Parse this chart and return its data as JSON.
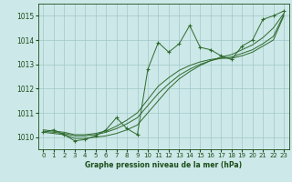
{
  "x": [
    0,
    1,
    2,
    3,
    4,
    5,
    6,
    7,
    8,
    9,
    10,
    11,
    12,
    13,
    14,
    15,
    16,
    17,
    18,
    19,
    20,
    21,
    22,
    23
  ],
  "y_main": [
    1010.2,
    1010.3,
    1010.1,
    1009.85,
    1009.9,
    1010.05,
    1010.3,
    1010.8,
    1010.35,
    1010.1,
    1012.8,
    1013.9,
    1013.5,
    1013.85,
    1014.6,
    1013.7,
    1013.6,
    1013.35,
    1013.2,
    1013.75,
    1014.0,
    1014.85,
    1015.0,
    1015.2
  ],
  "y_smooth1": [
    1010.2,
    1010.15,
    1010.1,
    1009.95,
    1009.95,
    1010.0,
    1010.05,
    1010.15,
    1010.3,
    1010.5,
    1011.0,
    1011.5,
    1012.0,
    1012.4,
    1012.7,
    1012.95,
    1013.15,
    1013.3,
    1013.4,
    1013.6,
    1013.8,
    1014.1,
    1014.5,
    1015.1
  ],
  "y_smooth2": [
    1010.25,
    1010.2,
    1010.15,
    1010.05,
    1010.05,
    1010.1,
    1010.2,
    1010.35,
    1010.55,
    1010.8,
    1011.3,
    1011.8,
    1012.2,
    1012.55,
    1012.8,
    1013.0,
    1013.15,
    1013.25,
    1013.3,
    1013.45,
    1013.6,
    1013.85,
    1014.15,
    1015.05
  ],
  "y_smooth3": [
    1010.3,
    1010.25,
    1010.2,
    1010.1,
    1010.1,
    1010.15,
    1010.25,
    1010.45,
    1010.7,
    1011.0,
    1011.55,
    1012.1,
    1012.45,
    1012.75,
    1012.95,
    1013.1,
    1013.2,
    1013.25,
    1013.25,
    1013.35,
    1013.5,
    1013.75,
    1014.0,
    1015.0
  ],
  "line_color": "#2d6a2d",
  "bg_color": "#cde8e8",
  "grid_color": "#a0c8c8",
  "label_color": "#1a4d1a",
  "xlabel": "Graphe pression niveau de la mer (hPa)",
  "ylim": [
    1009.5,
    1015.5
  ],
  "xlim": [
    -0.5,
    23.5
  ],
  "yticks": [
    1010,
    1011,
    1012,
    1013,
    1014,
    1015
  ],
  "xticks": [
    0,
    1,
    2,
    3,
    4,
    5,
    6,
    7,
    8,
    9,
    10,
    11,
    12,
    13,
    14,
    15,
    16,
    17,
    18,
    19,
    20,
    21,
    22,
    23
  ]
}
